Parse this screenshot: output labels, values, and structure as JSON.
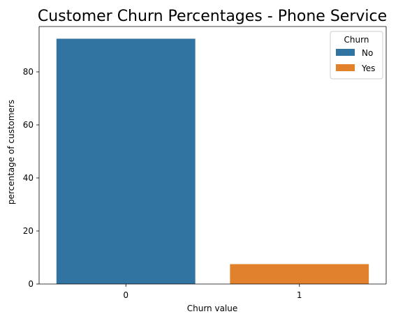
{
  "chart_data": {
    "type": "bar",
    "title": "Customer Churn Percentages - Phone Service",
    "xlabel": "Churn value",
    "ylabel": "percentage of customers",
    "categories": [
      "0",
      "1"
    ],
    "series": [
      {
        "name": "No",
        "values": [
          92.5,
          null
        ],
        "color": "#3274a1"
      },
      {
        "name": "Yes",
        "values": [
          null,
          7.5
        ],
        "color": "#e1812c"
      }
    ],
    "ylim": [
      0,
      97.1
    ],
    "yticks": [
      0,
      20,
      40,
      60,
      80
    ],
    "grid": false,
    "legend": {
      "title": "Churn",
      "position": "top-right"
    }
  }
}
